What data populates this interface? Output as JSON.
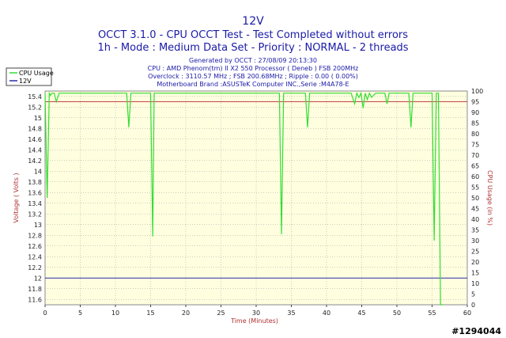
{
  "header": {
    "title": "12V",
    "subtitle1": "OCCT 3.1.0 - CPU OCCT Test - Test Completed without errors",
    "subtitle2": "1h - Mode : Medium Data Set - Priority : NORMAL - 2 threads"
  },
  "info": {
    "line1": "Generated by OCCT : 27/08/09 20:13:30",
    "line2": "CPU : AMD Phenom(tm) II X2 550 Processor ( Deneb ) FSB 200MHz",
    "line3": "Overclock : 3110.57 MHz ; FSB 200.68MHz ; Ripple : 0.00 ( 0.00%)",
    "line4": "Motherboard Brand :ASUSTeK Computer INC.,Serie :M4A78-E"
  },
  "watermark": "#1294044",
  "colors": {
    "background": "#ffffff",
    "plot_bg": "#ffffe0",
    "cpu_line": "#33dd33",
    "voltage_line": "#2a2aa8",
    "threshold_line": "#c44444",
    "title": "#1a1aa8",
    "axis_label": "#b03030"
  },
  "chart_data": {
    "type": "line",
    "title": "12V",
    "xlabel": "Time (Minutes)",
    "ylabel": "Voltage ( Volts )",
    "ylabel_right": "CPU Usage (in %)",
    "xlim": [
      0,
      60
    ],
    "ylim": [
      11.5,
      15.5
    ],
    "ylim_right": [
      0,
      100
    ],
    "x_ticks": [
      0,
      5,
      10,
      15,
      20,
      25,
      30,
      35,
      40,
      45,
      50,
      55,
      60
    ],
    "y_ticks": [
      11.6,
      11.8,
      12,
      12.2,
      12.4,
      12.6,
      12.8,
      13,
      13.2,
      13.4,
      13.6,
      13.8,
      14,
      14.2,
      14.4,
      14.6,
      14.8,
      15,
      15.2,
      15.4
    ],
    "y_ticks_right": [
      0,
      5,
      10,
      15,
      20,
      25,
      30,
      35,
      40,
      45,
      50,
      55,
      60,
      65,
      70,
      75,
      80,
      85,
      90,
      95,
      100
    ],
    "grid": true,
    "legend_position": "top-left",
    "reference_line_y_right": 95,
    "series": [
      {
        "name": "CPU Usage",
        "axis": "right",
        "x": [
          0,
          0.3,
          0.6,
          0.8,
          1.0,
          1.3,
          1.6,
          2.0,
          3,
          4,
          5,
          6,
          7,
          8,
          9,
          10,
          11,
          11.6,
          11.9,
          12.2,
          13,
          14,
          15.0,
          15.3,
          15.5,
          15.8,
          16.1,
          17,
          18,
          20,
          22,
          25,
          28,
          30,
          32,
          33.3,
          33.6,
          33.9,
          35,
          36,
          37.0,
          37.3,
          37.6,
          38,
          40,
          42,
          43.5,
          44,
          44.3,
          44.6,
          44.9,
          45.2,
          45.5,
          45.8,
          46.1,
          46.4,
          47,
          48.3,
          48.6,
          48.9,
          50,
          51.7,
          52.0,
          52.3,
          53,
          54,
          55.0,
          55.3,
          55.6,
          55.9,
          56.2,
          56.5
        ],
        "values": [
          99,
          50,
          99,
          98,
          99,
          99,
          95,
          99,
          99,
          99,
          99,
          99,
          99,
          99,
          99,
          99,
          99,
          99,
          83,
          99,
          99,
          99,
          99,
          32,
          99,
          99,
          99,
          99,
          99,
          99,
          99,
          99,
          99,
          99,
          99,
          99,
          33,
          99,
          99,
          99,
          99,
          83,
          99,
          99,
          99,
          99,
          99,
          94,
          99,
          97,
          99,
          92,
          99,
          96,
          99,
          97,
          99,
          99,
          94,
          99,
          99,
          99,
          83,
          99,
          99,
          99,
          99,
          30,
          99,
          99,
          0,
          0
        ]
      },
      {
        "name": "12V",
        "axis": "left",
        "x": [
          0,
          60
        ],
        "values": [
          12.0,
          12.0
        ]
      }
    ]
  }
}
